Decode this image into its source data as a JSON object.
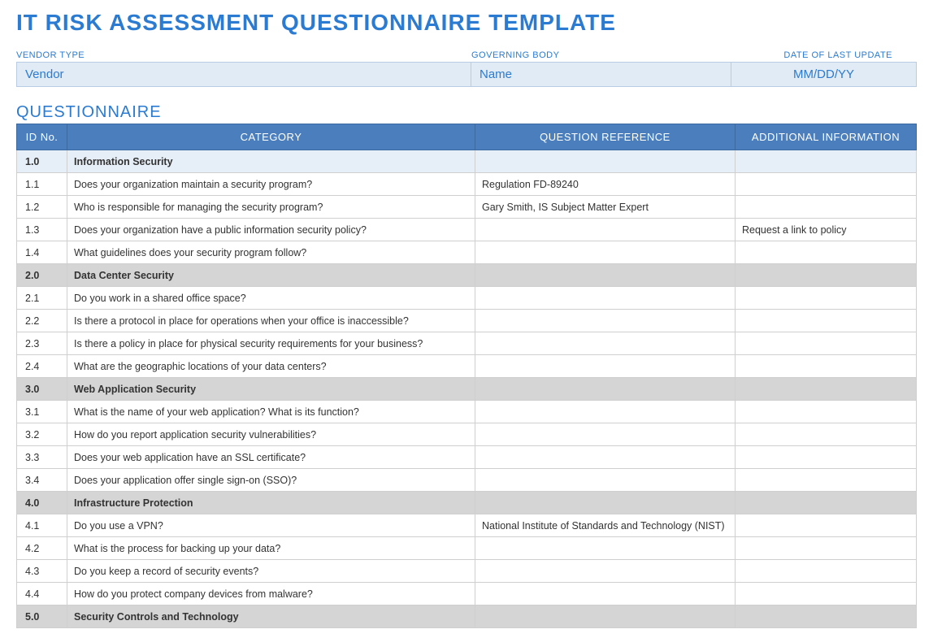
{
  "colors": {
    "title": "#2a7bd1",
    "meta_label": "#2a7bd1",
    "meta_value_bg": "#e1ebf5",
    "meta_value_text": "#2a7bd1",
    "section_title": "#2a7bd1",
    "thead_bg": "#4a7ebd",
    "section_light_bg": "#e6eef7",
    "section_gray_bg": "#d5d5d5"
  },
  "title": "IT RISK ASSESSMENT QUESTIONNAIRE TEMPLATE",
  "meta": {
    "vendor_label": "VENDOR TYPE",
    "vendor_value": "Vendor",
    "body_label": "GOVERNING BODY",
    "body_value": "Name",
    "date_label": "DATE OF LAST UPDATE",
    "date_value": "MM/DD/YY"
  },
  "section_title": "QUESTIONNAIRE",
  "columns": {
    "id": "ID No.",
    "category": "CATEGORY",
    "reference": "QUESTION REFERENCE",
    "additional": "ADDITIONAL INFORMATION"
  },
  "rows": [
    {
      "type": "section",
      "style": "light",
      "id": "1.0",
      "category": "Information Security",
      "reference": "",
      "additional": ""
    },
    {
      "type": "item",
      "id": "1.1",
      "category": "Does your organization maintain a security program?",
      "reference": "Regulation FD-89240",
      "additional": ""
    },
    {
      "type": "item",
      "id": "1.2",
      "category": "Who is responsible for managing the security program?",
      "reference": "Gary Smith, IS Subject Matter Expert",
      "additional": ""
    },
    {
      "type": "item",
      "id": "1.3",
      "category": "Does your organization have a public information security policy?",
      "reference": "",
      "additional": "Request a link to policy"
    },
    {
      "type": "item",
      "id": "1.4",
      "category": "What guidelines does your security program follow?",
      "reference": "",
      "additional": ""
    },
    {
      "type": "section",
      "style": "gray",
      "id": "2.0",
      "category": "Data Center Security",
      "reference": "",
      "additional": ""
    },
    {
      "type": "item",
      "id": "2.1",
      "category": "Do you work in a shared office space?",
      "reference": "",
      "additional": ""
    },
    {
      "type": "item",
      "id": "2.2",
      "category": "Is there a protocol in place for operations when your office is inaccessible?",
      "reference": "",
      "additional": ""
    },
    {
      "type": "item",
      "id": "2.3",
      "category": "Is there a policy in place for physical security requirements for your business?",
      "reference": "",
      "additional": ""
    },
    {
      "type": "item",
      "id": "2.4",
      "category": "What are the geographic locations of your data centers?",
      "reference": "",
      "additional": ""
    },
    {
      "type": "section",
      "style": "gray",
      "id": "3.0",
      "category": "Web Application Security",
      "reference": "",
      "additional": ""
    },
    {
      "type": "item",
      "id": "3.1",
      "category": "What is the name of your web application? What is its function?",
      "reference": "",
      "additional": ""
    },
    {
      "type": "item",
      "id": "3.2",
      "category": "How do you report application security vulnerabilities?",
      "reference": "",
      "additional": ""
    },
    {
      "type": "item",
      "id": "3.3",
      "category": "Does your web application have an SSL certificate?",
      "reference": "",
      "additional": ""
    },
    {
      "type": "item",
      "id": "3.4",
      "category": "Does your application offer single sign-on (SSO)?",
      "reference": "",
      "additional": ""
    },
    {
      "type": "section",
      "style": "gray",
      "id": "4.0",
      "category": "Infrastructure Protection",
      "reference": "",
      "additional": ""
    },
    {
      "type": "item",
      "id": "4.1",
      "category": "Do you use a VPN?",
      "reference": "National Institute of Standards and Technology (NIST)",
      "additional": ""
    },
    {
      "type": "item",
      "id": "4.2",
      "category": "What is the process for backing up your data?",
      "reference": "",
      "additional": ""
    },
    {
      "type": "item",
      "id": "4.3",
      "category": "Do you keep a record of security events?",
      "reference": "",
      "additional": ""
    },
    {
      "type": "item",
      "id": "4.4",
      "category": "How do you protect company devices from malware?",
      "reference": "",
      "additional": ""
    },
    {
      "type": "section",
      "style": "gray",
      "id": "5.0",
      "category": "Security Controls and Technology",
      "reference": "",
      "additional": ""
    }
  ]
}
